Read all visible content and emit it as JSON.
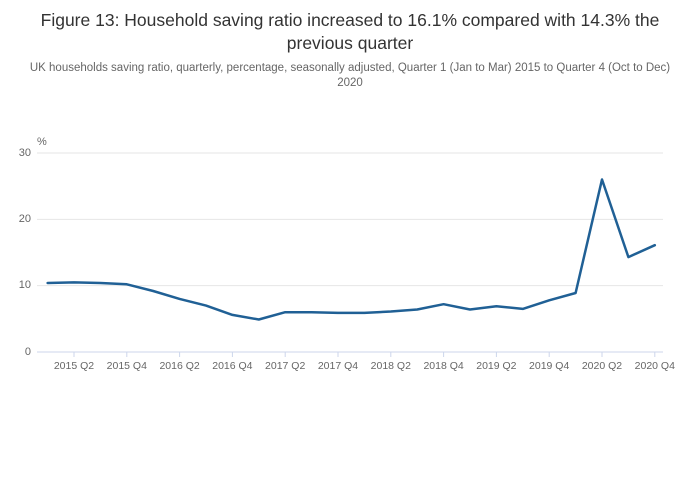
{
  "chart_data": {
    "type": "line",
    "title": "Figure 13: Household saving ratio increased to 16.1% compared with 14.3% the previous quarter",
    "subtitle": "UK households saving ratio, quarterly, percentage, seasonally adjusted, Quarter 1 (Jan to Mar) 2015 to Quarter 4 (Oct to Dec) 2020",
    "unit": "%",
    "xlabel": "",
    "ylabel": "%",
    "x": [
      "2015 Q1",
      "2015 Q2",
      "2015 Q3",
      "2015 Q4",
      "2016 Q1",
      "2016 Q2",
      "2016 Q3",
      "2016 Q4",
      "2017 Q1",
      "2017 Q2",
      "2017 Q3",
      "2017 Q4",
      "2018 Q1",
      "2018 Q2",
      "2018 Q3",
      "2018 Q4",
      "2019 Q1",
      "2019 Q2",
      "2019 Q3",
      "2019 Q4",
      "2020 Q1",
      "2020 Q2",
      "2020 Q3",
      "2020 Q4"
    ],
    "values": [
      10.4,
      10.5,
      10.4,
      10.2,
      9.2,
      8.0,
      7.0,
      5.6,
      4.9,
      6.0,
      6.0,
      5.9,
      5.9,
      6.1,
      6.4,
      7.2,
      6.4,
      6.9,
      6.5,
      7.8,
      8.9,
      26.0,
      14.3,
      16.1
    ],
    "xtick_labels": [
      "2015 Q2",
      "2015 Q4",
      "2016 Q2",
      "2016 Q4",
      "2017 Q2",
      "2017 Q4",
      "2018 Q2",
      "2018 Q4",
      "2019 Q2",
      "2019 Q4",
      "2020 Q2",
      "2020 Q4"
    ],
    "yticks": [
      0,
      10,
      20,
      30
    ],
    "ylim": [
      0,
      31.5
    ],
    "grid": true,
    "legend": false,
    "line_color": "#206095",
    "grid_color": "#e6e6e6",
    "axis_color": "#ccd6eb",
    "label_color": "#666666",
    "title_color": "#333333"
  }
}
